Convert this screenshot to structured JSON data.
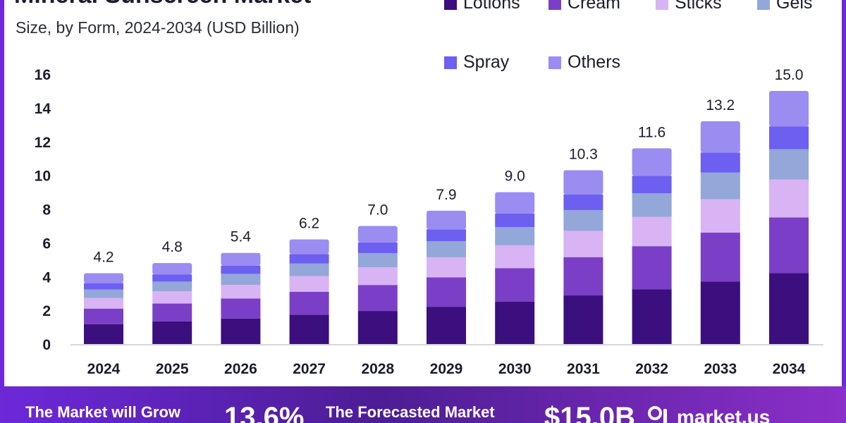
{
  "chart_data": {
    "type": "bar",
    "stacked": true,
    "title": "Mineral Sunscreen Market",
    "subtitle": "Size, by Form, 2024-2034 (USD Billion)",
    "xlabel": "",
    "ylabel": "",
    "ylim": [
      0,
      16
    ],
    "yticks": [
      0,
      2,
      4,
      6,
      8,
      10,
      12,
      14,
      16
    ],
    "grid": false,
    "legend_position": "top-right",
    "categories": [
      "2024",
      "2025",
      "2026",
      "2027",
      "2028",
      "2029",
      "2030",
      "2031",
      "2032",
      "2033",
      "2034"
    ],
    "totals": [
      4.2,
      4.8,
      5.4,
      6.2,
      7.0,
      7.9,
      9.0,
      10.3,
      11.6,
      13.2,
      15.0
    ],
    "total_labels": [
      "4.2",
      "4.8",
      "5.4",
      "6.2",
      "7.0",
      "7.9",
      "9.0",
      "10.3",
      "11.6",
      "13.2",
      "15.0"
    ],
    "series": [
      {
        "name": "Lotions",
        "color": "#3b0f7d",
        "values": [
          1.18,
          1.34,
          1.51,
          1.74,
          1.96,
          2.21,
          2.52,
          2.88,
          3.25,
          3.7,
          4.2
        ]
      },
      {
        "name": "Cream",
        "color": "#7a3fc6",
        "values": [
          0.92,
          1.06,
          1.19,
          1.36,
          1.54,
          1.74,
          1.98,
          2.27,
          2.55,
          2.9,
          3.3
        ]
      },
      {
        "name": "Sticks",
        "color": "#d8b4f4",
        "values": [
          0.63,
          0.72,
          0.81,
          0.93,
          1.05,
          1.19,
          1.35,
          1.55,
          1.74,
          1.98,
          2.25
        ]
      },
      {
        "name": "Gels",
        "color": "#93a7d9",
        "values": [
          0.5,
          0.58,
          0.65,
          0.74,
          0.84,
          0.95,
          1.08,
          1.24,
          1.39,
          1.58,
          1.8
        ]
      },
      {
        "name": "Spray",
        "color": "#6d5ff0",
        "values": [
          0.38,
          0.43,
          0.49,
          0.56,
          0.63,
          0.71,
          0.81,
          0.93,
          1.04,
          1.19,
          1.35
        ]
      },
      {
        "name": "Others",
        "color": "#9b8cf2",
        "values": [
          0.59,
          0.67,
          0.75,
          0.87,
          0.98,
          1.1,
          1.26,
          1.43,
          1.63,
          1.85,
          2.1
        ]
      }
    ]
  },
  "footer": {
    "grow_text": "The Market will Grow",
    "cagr": "13.6%",
    "forecast_text": "The Forecasted Market",
    "forecast_value": "$15.0B",
    "logo_text": "market.us"
  }
}
